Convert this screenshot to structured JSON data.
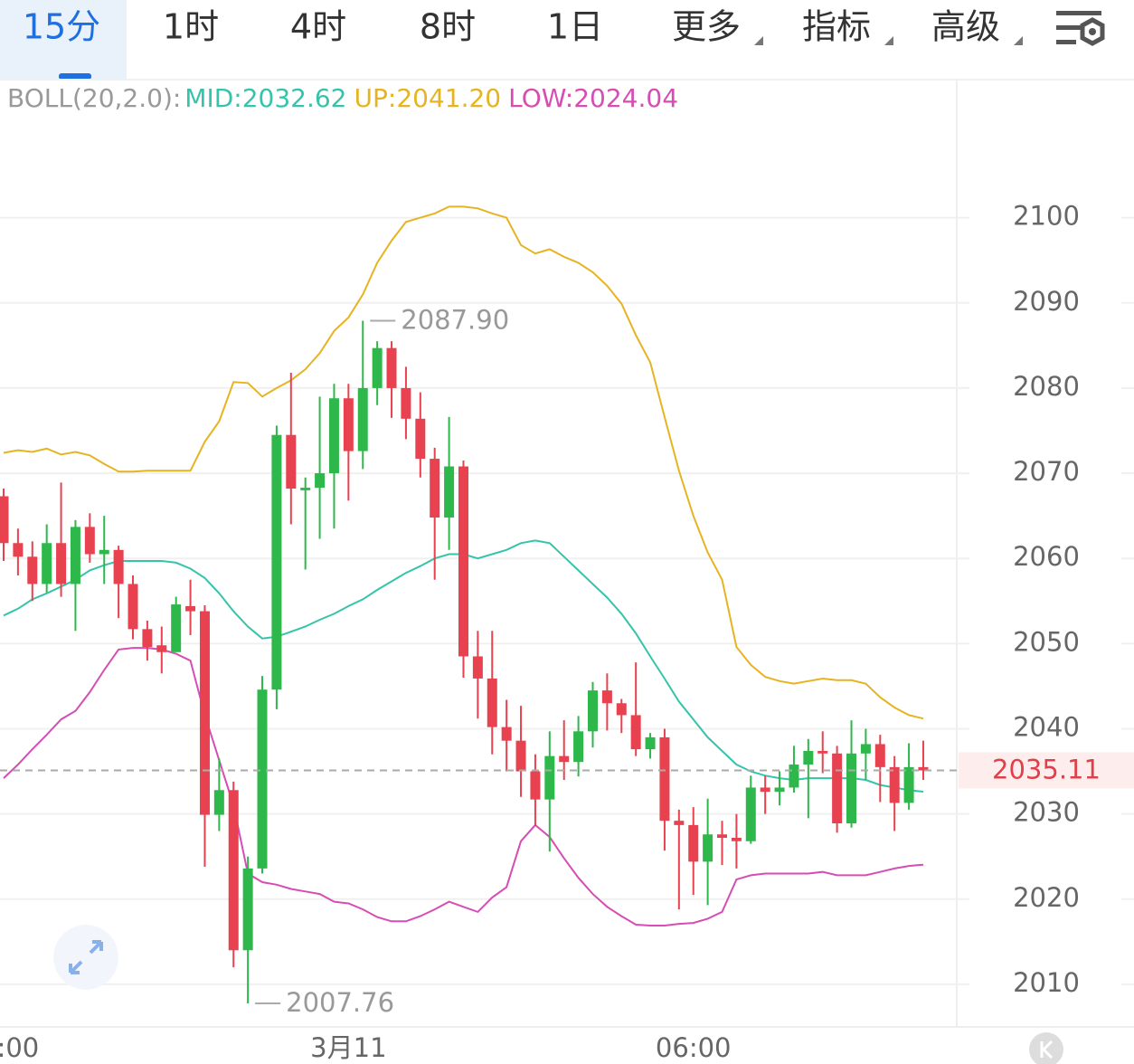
{
  "tabs": [
    "15分",
    "1时",
    "4时",
    "8时",
    "1日",
    "更多",
    "指标",
    "高级"
  ],
  "selected_tab": 0,
  "chart_data": {
    "type": "candlestick",
    "indicator": {
      "label": "BOLL(20,2.0):",
      "mid": "MID:2032.62",
      "up": "UP:2041.20",
      "low": "LOW:2024.04"
    },
    "categories": [
      null,
      ":00",
      null,
      null,
      null,
      null,
      null,
      null,
      null,
      null,
      null,
      null,
      null,
      null,
      null,
      null,
      null,
      null,
      null,
      null,
      null,
      null,
      null,
      null,
      "3月11",
      null,
      null,
      null,
      null,
      null,
      null,
      null,
      null,
      null,
      null,
      null,
      null,
      null,
      null,
      null,
      null,
      null,
      null,
      null,
      null,
      null,
      null,
      null,
      "06:00",
      null,
      null,
      null,
      null,
      null,
      null,
      null,
      null,
      null,
      null,
      null,
      null,
      null,
      null,
      null,
      null
    ],
    "open": [
      2067.3,
      2061.8,
      2060.2,
      2057.0,
      2061.8,
      2057.0,
      2063.7,
      2060.5,
      2061.0,
      2057.0,
      2051.7,
      2049.8,
      2049.0,
      2054.4,
      2053.8,
      2029.9,
      2032.8,
      2014.0,
      2023.6,
      2044.6,
      2074.5,
      2068.0,
      2068.3,
      2070.0,
      2078.8,
      2072.6,
      2080.0,
      2084.7,
      2080.0,
      2076.4,
      2071.7,
      2064.8,
      2070.8,
      2048.5,
      2045.9,
      2040.2,
      2038.6,
      2035.0,
      2031.7,
      2036.8,
      2036.1,
      2039.7,
      2044.5,
      2043.0,
      2041.6,
      2037.6,
      2039.0,
      2029.2,
      2028.7,
      2024.4,
      2027.6,
      2027.2,
      2026.8,
      2033.1,
      2032.6,
      2033.1,
      2035.8,
      2037.4,
      2037.1,
      2028.9,
      2037.1,
      2038.2,
      2035.5,
      2031.3,
      2035.5
    ],
    "high": [
      2068.2,
      2063.5,
      2062,
      2064,
      2068.9,
      2064.5,
      2065.3,
      2065,
      2061.5,
      2058,
      2052.7,
      2052,
      2055.5,
      2057.5,
      2054.5,
      2036.5,
      2033.8,
      2025,
      2046.2,
      2075.6,
      2081.8,
      2069.5,
      2079,
      2080.5,
      2080.5,
      2087.9,
      2085.5,
      2085.5,
      2082.5,
      2079.5,
      2073,
      2076.6,
      2071.5,
      2051.5,
      2051.5,
      2043.4,
      2042.7,
      2037,
      2039.7,
      2041,
      2041.5,
      2045.5,
      2046.5,
      2043.5,
      2047.8,
      2039.5,
      2040,
      2030.5,
      2030.8,
      2031.8,
      2029.2,
      2030,
      2034.5,
      2034.5,
      2035,
      2038,
      2038.8,
      2039.7,
      2038,
      2041,
      2040,
      2039.3,
      2036.8,
      2038.3,
      2038.6
    ],
    "low": [
      2059.7,
      2058.0,
      2055,
      2056,
      2055.5,
      2051.5,
      2059.5,
      2057,
      2053,
      2050.5,
      2048,
      2046.5,
      2049,
      2051,
      2023.8,
      2028,
      2012,
      2007.76,
      2023,
      2042.3,
      2064,
      2058.7,
      2062.3,
      2063.5,
      2066.8,
      2070.5,
      2078,
      2076.5,
      2074,
      2069.5,
      2057.5,
      2061,
      2046,
      2041.2,
      2037,
      2035,
      2032,
      2028.6,
      2025.6,
      2034,
      2034.4,
      2037.8,
      2039.8,
      2039.5,
      2036.8,
      2036.5,
      2025.7,
      2018.8,
      2020.5,
      2019.3,
      2024,
      2023.6,
      2026.5,
      2030,
      2031,
      2032.5,
      2029.5,
      2034.8,
      2027.8,
      2028.4,
      2034,
      2031.4,
      2028,
      2030.5,
      2034
    ],
    "close": [
      2061.8,
      2060.2,
      2057.0,
      2061.8,
      2057.0,
      2063.7,
      2060.5,
      2061.0,
      2057.0,
      2051.7,
      2049.6,
      2049.0,
      2054.6,
      2053.8,
      2029.9,
      2032.8,
      2014.0,
      2023.6,
      2044.6,
      2074.5,
      2068.2,
      2068.3,
      2070.0,
      2078.8,
      2072.6,
      2080.0,
      2084.7,
      2080.0,
      2076.4,
      2071.7,
      2064.8,
      2070.8,
      2048.5,
      2045.9,
      2040.2,
      2038.6,
      2035.0,
      2031.7,
      2036.8,
      2036.1,
      2039.7,
      2044.5,
      2043.0,
      2041.6,
      2037.6,
      2039.0,
      2029.2,
      2028.7,
      2024.4,
      2027.6,
      2027.2,
      2026.8,
      2033.1,
      2032.6,
      2033.1,
      2035.8,
      2037.4,
      2037.1,
      2028.9,
      2037.1,
      2038.2,
      2035.5,
      2031.3,
      2035.5,
      2035.11
    ],
    "up_color": "#2eb84b",
    "down_color": "#e8414f",
    "bands": {
      "up": {
        "color": "#e6b422",
        "values": [
          2072.4,
          2072.7,
          2072.5,
          2072.9,
          2072.2,
          2072.5,
          2072.1,
          2071.1,
          2070.2,
          2070.2,
          2070.3,
          2070.3,
          2070.3,
          2070.3,
          2073.7,
          2076.1,
          2080.7,
          2080.6,
          2079.0,
          2080.0,
          2080.9,
          2082.2,
          2084.1,
          2086.7,
          2088.3,
          2091.0,
          2094.7,
          2097.3,
          2099.5,
          2100.0,
          2100.5,
          2101.3,
          2101.3,
          2101.1,
          2100.5,
          2100.0,
          2096.8,
          2095.8,
          2096.3,
          2095.4,
          2094.7,
          2093.6,
          2092.0,
          2089.9,
          2086.2,
          2083.0,
          2076.6,
          2070.3,
          2065.0,
          2060.7,
          2057.5,
          2049.6,
          2047.5,
          2046.1,
          2045.6,
          2045.3,
          2045.6,
          2045.9,
          2045.7,
          2045.7,
          2045.3,
          2043.7,
          2042.5,
          2041.6,
          2041.2
        ]
      },
      "mid": {
        "color": "#35c4ab",
        "values": [
          2053.3,
          2054.1,
          2055.2,
          2055.9,
          2056.7,
          2057.5,
          2058.6,
          2059.2,
          2059.7,
          2059.7,
          2059.7,
          2059.7,
          2059.5,
          2058.8,
          2057.7,
          2055.9,
          2053.8,
          2052.0,
          2050.6,
          2050.8,
          2051.4,
          2052.0,
          2052.8,
          2053.5,
          2054.4,
          2055.2,
          2056.3,
          2057.3,
          2058.3,
          2059.1,
          2060.0,
          2060.5,
          2060.5,
          2060.0,
          2060.5,
          2061.0,
          2061.8,
          2062.1,
          2061.8,
          2060.2,
          2058.6,
          2057.0,
          2055.4,
          2053.5,
          2051.2,
          2048.5,
          2045.9,
          2043.2,
          2041.1,
          2039.0,
          2037.4,
          2035.8,
          2035.0,
          2034.5,
          2034.2,
          2034.0,
          2034.2,
          2034.2,
          2034.2,
          2034.2,
          2034.0,
          2033.4,
          2033.1,
          2032.8,
          2032.62
        ]
      },
      "low": {
        "color": "#d64db3",
        "values": [
          2034.2,
          2035.8,
          2037.6,
          2039.3,
          2041.1,
          2042.1,
          2044.3,
          2046.9,
          2049.3,
          2049.5,
          2049.5,
          2049.3,
          2048.8,
          2048.0,
          2041.6,
          2036.3,
          2031.0,
          2023.0,
          2022.0,
          2021.7,
          2021.2,
          2020.9,
          2020.6,
          2019.7,
          2019.5,
          2018.8,
          2017.9,
          2017.4,
          2017.4,
          2018.0,
          2018.8,
          2019.7,
          2019.1,
          2018.5,
          2020.2,
          2021.4,
          2026.8,
          2028.7,
          2027.3,
          2024.8,
          2022.5,
          2020.6,
          2019.1,
          2018.0,
          2017.0,
          2016.9,
          2016.9,
          2017.1,
          2017.2,
          2017.7,
          2018.5,
          2022.3,
          2022.8,
          2023.0,
          2023.0,
          2023.0,
          2023.0,
          2023.2,
          2022.8,
          2022.8,
          2022.8,
          2023.2,
          2023.6,
          2023.9,
          2024.04
        ]
      }
    },
    "last_price": 2035.11,
    "annotations": [
      {
        "index": 25,
        "value": 2087.9,
        "label": "2087.90"
      },
      {
        "index": 17,
        "value": 2007.76,
        "label": "2007.76"
      }
    ],
    "ylim": [
      2005,
      2116
    ],
    "yticks": [
      2010,
      2020,
      2030,
      2040,
      2050,
      2060,
      2070,
      2080,
      2090,
      2100
    ],
    "grid": true
  }
}
